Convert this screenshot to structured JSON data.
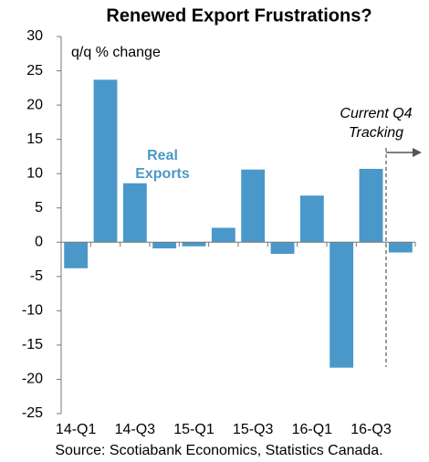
{
  "chart_data": {
    "type": "bar",
    "title": "Renewed Export Frustrations?",
    "y_label": "q/q % change",
    "annotations": [
      "Real",
      "Exports",
      "Current Q4",
      "Tracking"
    ],
    "source": "Source: Scotiabank Economics, Statistics Canada.",
    "categories": [
      "14-Q1",
      null,
      "14-Q3",
      null,
      "15-Q1",
      null,
      "15-Q3",
      null,
      "16-Q1",
      null,
      "16-Q3",
      null
    ],
    "values": [
      -3.8,
      23.7,
      8.6,
      -0.9,
      -0.6,
      2.1,
      10.6,
      -1.7,
      6.8,
      -18.3,
      10.7,
      -1.5
    ],
    "color": "#4a98c9",
    "ylim": [
      -25,
      30
    ],
    "yticks": [
      -25,
      -20,
      -15,
      -10,
      -5,
      0,
      5,
      10,
      15,
      20,
      25,
      30
    ],
    "grid": false
  }
}
